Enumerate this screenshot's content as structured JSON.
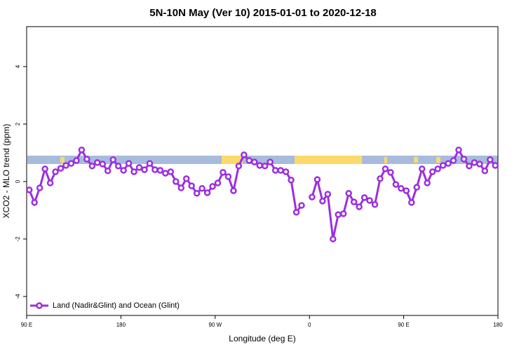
{
  "chart_data": {
    "type": "line",
    "title": "5N-10N May (Ver 10)   2015-01-01 to 2020-12-18",
    "xlabel": "Longitude (deg E)",
    "ylabel": "XCO2 - MLO trend (ppm)",
    "xlim": [
      90,
      540
    ],
    "ylim": [
      -4.66,
      5.39
    ],
    "xticks": [
      {
        "value": 90,
        "label": "90 E"
      },
      180,
      {
        "value": 270,
        "label": "90 W"
      },
      {
        "value": 360,
        "label": "0"
      },
      {
        "value": 450,
        "label": "90 E"
      },
      {
        "value": 540,
        "label": "180"
      }
    ],
    "yticks": [
      -4,
      -2,
      0,
      2,
      4
    ],
    "legend": "bottom-left",
    "x": [
      92.5,
      97.5,
      102.5,
      107.5,
      112.5,
      117.5,
      122.5,
      127.5,
      132.5,
      137.5,
      142.5,
      147.5,
      152.5,
      157.5,
      162.5,
      167.5,
      172.5,
      177.5,
      182.5,
      187.5,
      192.5,
      197.5,
      202.5,
      207.5,
      212.5,
      217.5,
      222.5,
      227.5,
      232.5,
      237.5,
      242.5,
      247.5,
      252.5,
      257.5,
      262.5,
      267.5,
      272.5,
      277.5,
      282.5,
      287.5,
      292.5,
      297.5,
      302.5,
      307.5,
      312.5,
      317.5,
      322.5,
      327.5,
      332.5,
      337.5,
      342.5,
      347.5,
      352.5,
      357.5,
      362.5,
      367.5,
      372.5,
      377.5,
      382.5,
      387.5,
      392.5,
      397.5,
      402.5,
      407.5,
      412.5,
      417.5,
      422.5,
      427.5,
      432.5,
      437.5,
      442.5,
      447.5,
      452.5,
      457.5,
      462.5,
      467.5,
      472.5,
      477.5,
      482.5,
      487.5,
      492.5,
      497.5,
      502.5,
      507.5,
      512.5,
      517.5,
      522.5,
      527.5,
      532.5,
      537.5
    ],
    "series": [
      {
        "name": "Land (Nadir&Glint) and Ocean (Glint)",
        "color": "#9b2fe0",
        "values": [
          -0.29,
          -0.73,
          -0.22,
          0.44,
          -0.05,
          0.34,
          0.46,
          0.56,
          0.63,
          0.73,
          1.1,
          0.78,
          0.54,
          0.66,
          0.61,
          0.37,
          0.76,
          0.54,
          0.39,
          0.63,
          0.34,
          0.49,
          0.41,
          0.63,
          0.41,
          0.39,
          0.29,
          0.34,
          0,
          -0.22,
          0.1,
          -0.15,
          -0.41,
          -0.24,
          -0.39,
          -0.17,
          -0.05,
          0.32,
          0.17,
          -0.32,
          0.54,
          0.93,
          0.73,
          0.68,
          0.56,
          0.54,
          0.68,
          0.39,
          0.39,
          0.34,
          0.05,
          -1.07,
          -0.83,
          null,
          -0.54,
          0.07,
          -0.68,
          -0.44,
          -2.0,
          -1.15,
          -1.12,
          -0.41,
          -0.71,
          -0.88,
          -0.56,
          -0.66,
          -0.8,
          0.1,
          0.44,
          0.32,
          -0.1,
          -0.24,
          -0.32,
          -0.73,
          -0.2,
          0.44,
          -0.05,
          0.34,
          0.44,
          0.56,
          0.63,
          0.73,
          1.1,
          0.78,
          0.54,
          0.66,
          0.61,
          0.37,
          0.76,
          0.56
        ]
      }
    ]
  }
}
